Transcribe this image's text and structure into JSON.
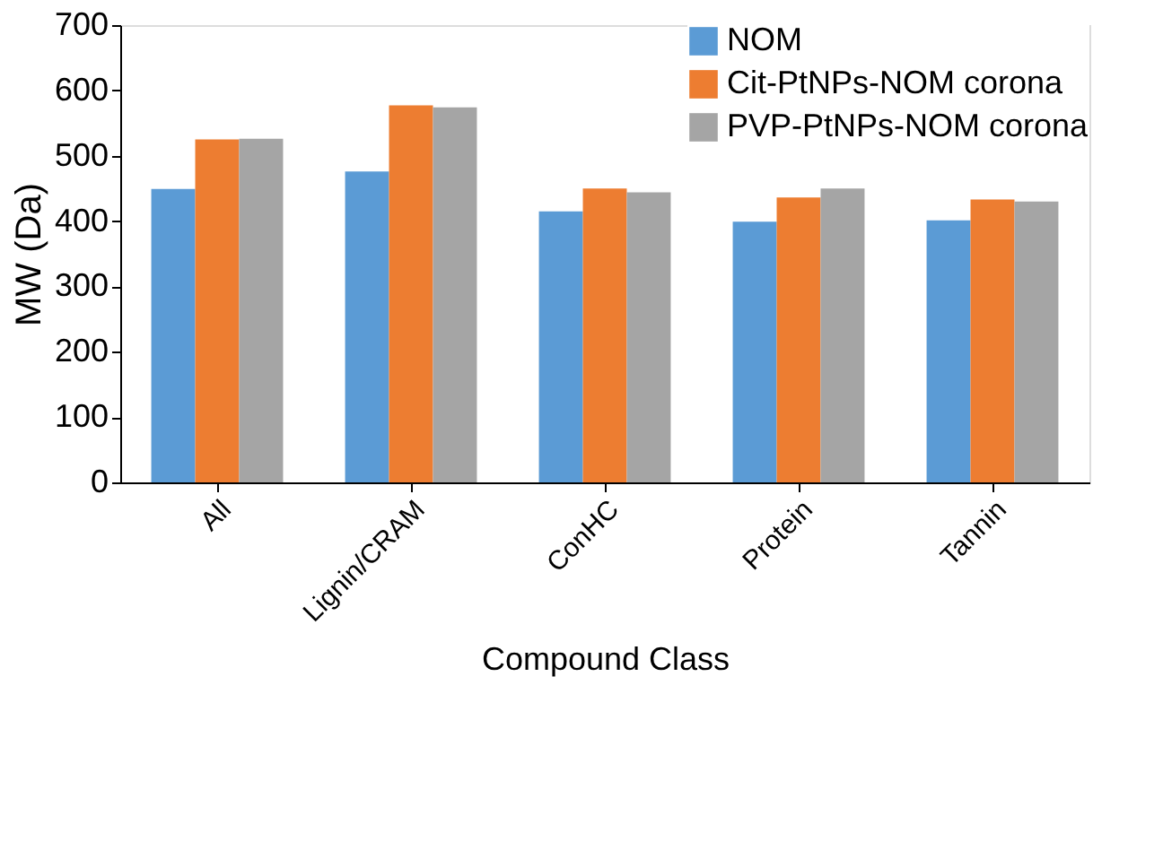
{
  "chart_data": {
    "type": "bar",
    "xlabel": "Compound Class",
    "ylabel": "MW (Da)",
    "categories": [
      "All",
      "Lignin/CRAM",
      "ConHC",
      "Protein",
      "Tannin"
    ],
    "series": [
      {
        "name": "NOM",
        "color": "#5b9bd5",
        "values": [
          449,
          476,
          415,
          399,
          401
        ]
      },
      {
        "name": "Cit-PtNPs-NOM corona",
        "color": "#ed7d31",
        "values": [
          525,
          577,
          450,
          436,
          433
        ]
      },
      {
        "name": "PVP-PtNPs-NOM corona",
        "color": "#a5a5a5",
        "values": [
          526,
          574,
          444,
          450,
          430
        ]
      }
    ],
    "ylim": [
      0,
      700
    ],
    "yticks": [
      0,
      100,
      200,
      300,
      400,
      500,
      600,
      700
    ],
    "grid": false,
    "legend": "top right"
  }
}
